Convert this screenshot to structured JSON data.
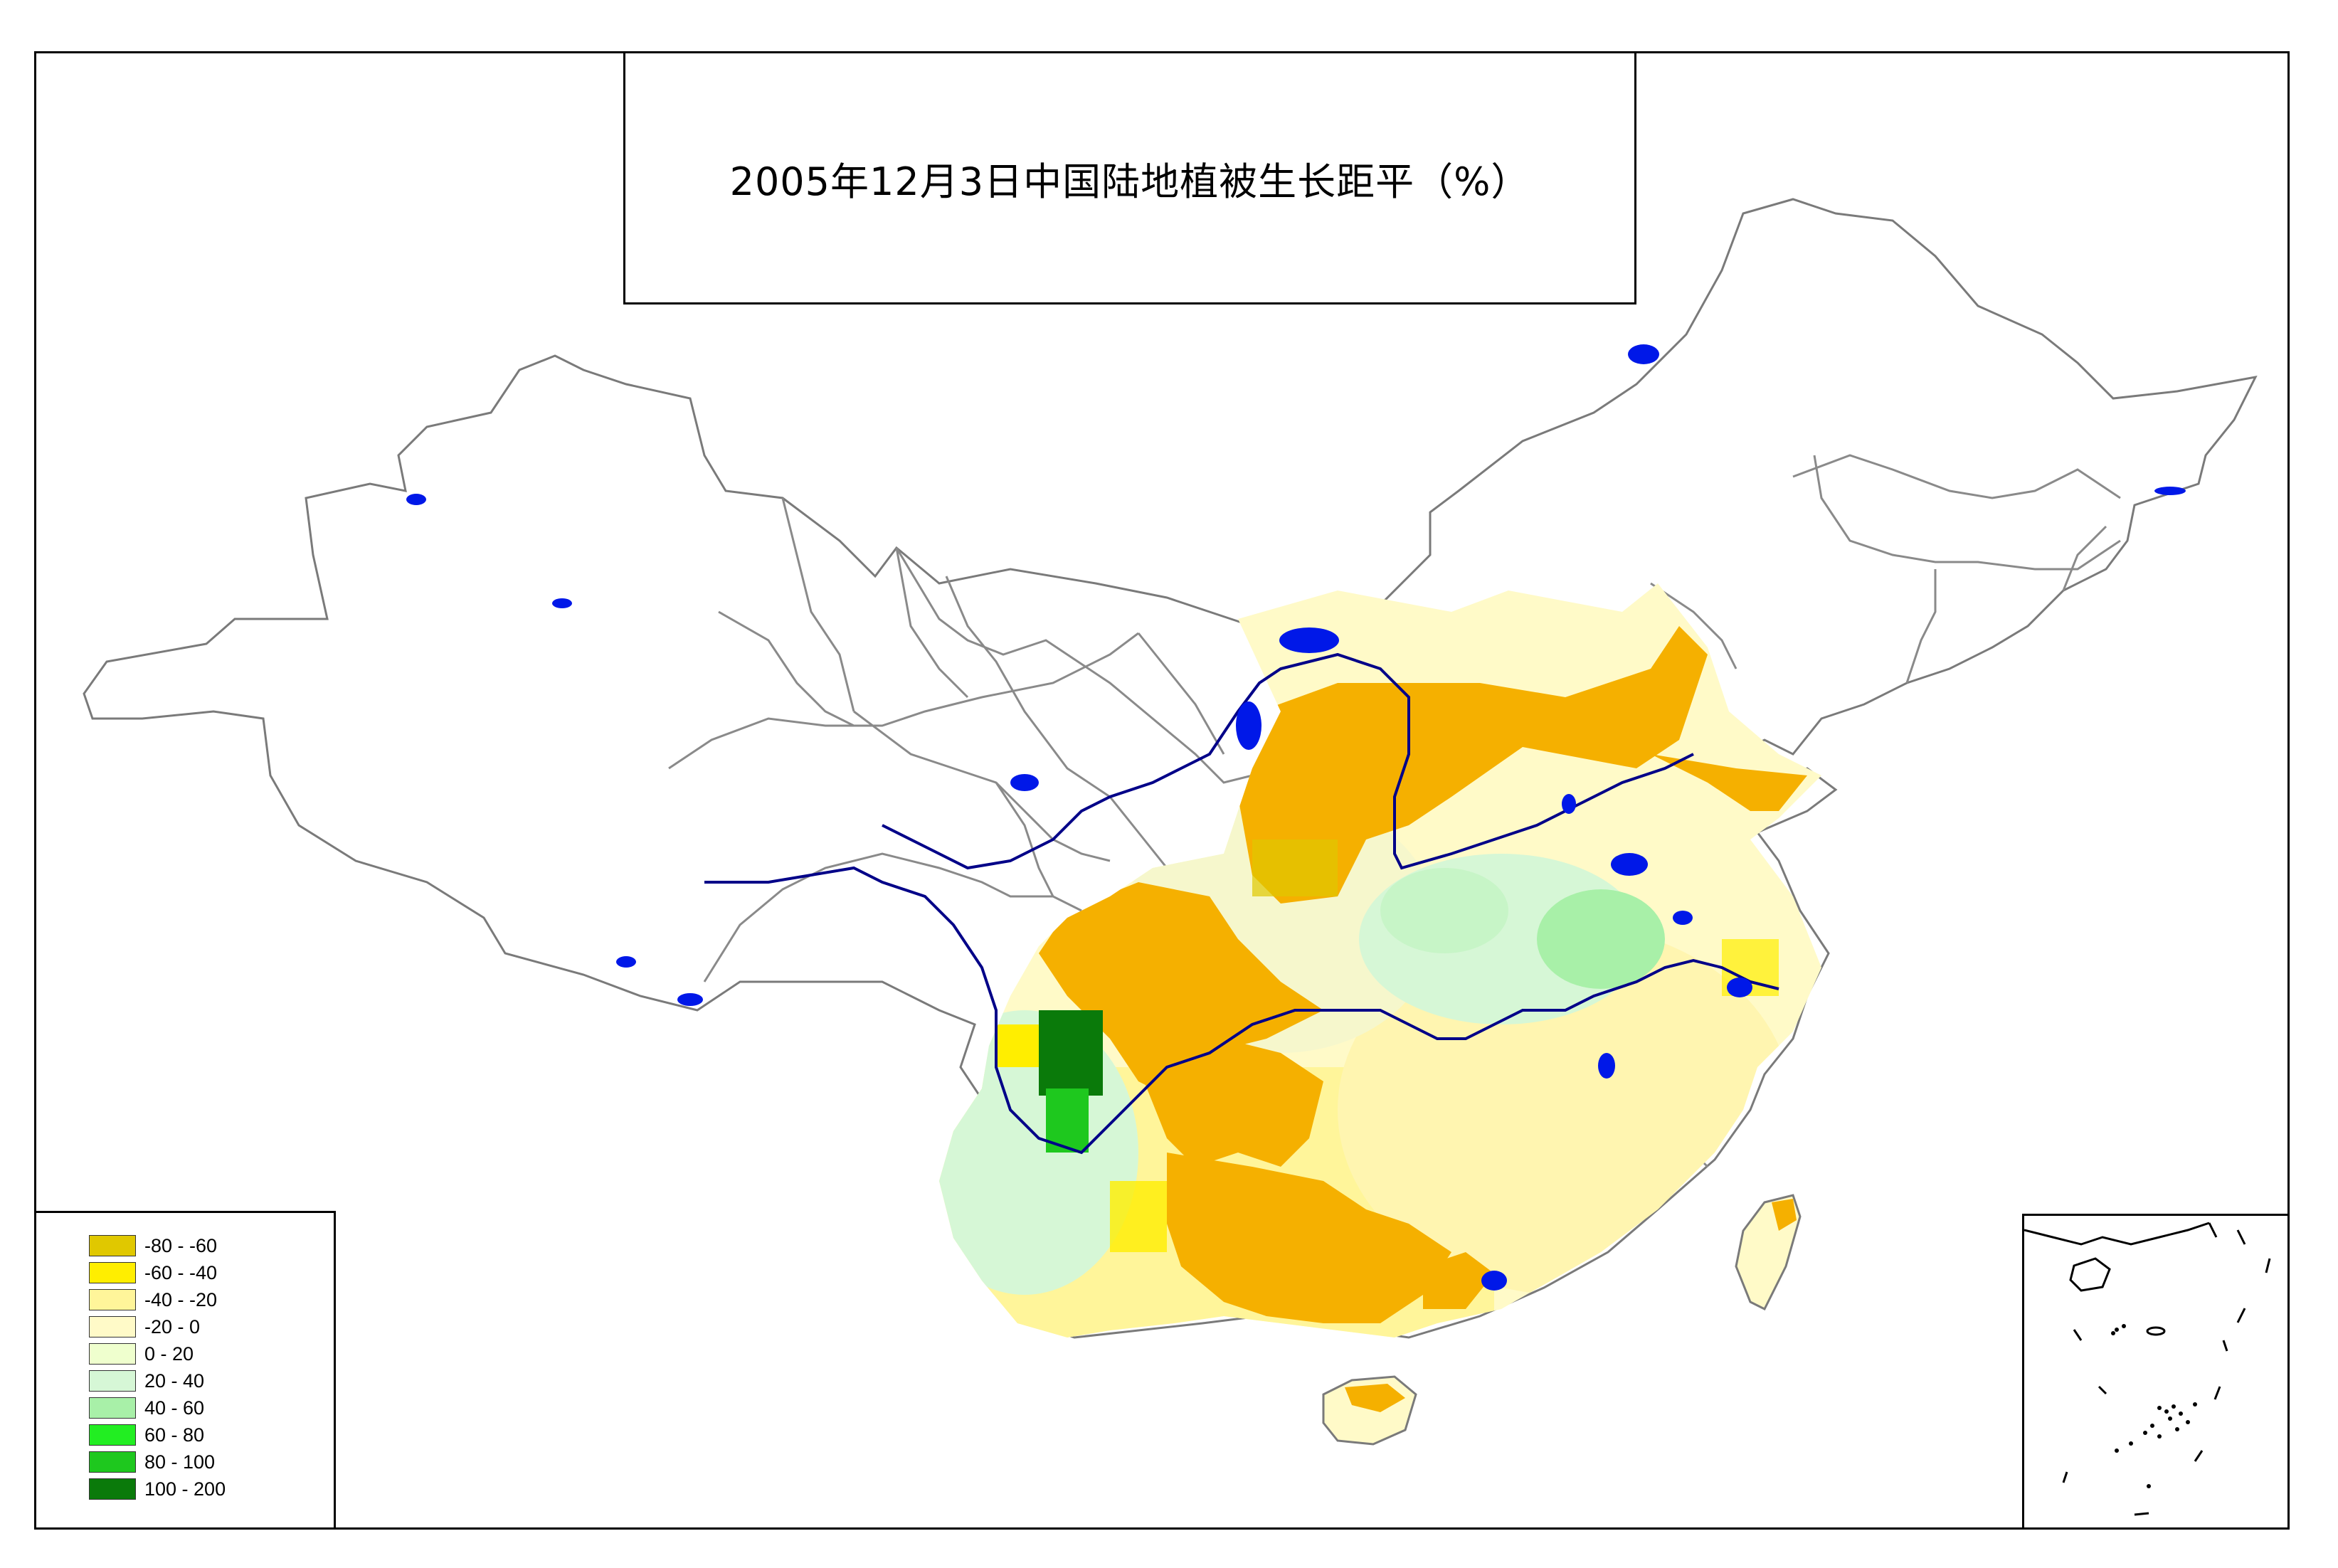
{
  "map": {
    "title": "2005年12月3日中国陆地植被生长距平（%）",
    "legend": [
      {
        "label": "-80 - -60",
        "color": "#e0c800"
      },
      {
        "label": "-60 - -40",
        "color": "#ffee00"
      },
      {
        "label": "-40 - -20",
        "color": "#fff59a"
      },
      {
        "label": "-20 - 0",
        "color": "#fffac8"
      },
      {
        "label": "0 - 20",
        "color": "#efffce"
      },
      {
        "label": "20 - 40",
        "color": "#d6f7d6"
      },
      {
        "label": "40 - 60",
        "color": "#a8f0a8"
      },
      {
        "label": "60 - 80",
        "color": "#22ee22"
      },
      {
        "label": "80 - 100",
        "color": "#1ec81e"
      },
      {
        "label": "100 - 200",
        "color": "#0a7a0a"
      }
    ],
    "colors": {
      "negative_large": "#f5b000",
      "water": "#0018e8",
      "river": "#000088",
      "boundary": "#7a7a7a",
      "coast": "#707070"
    }
  }
}
